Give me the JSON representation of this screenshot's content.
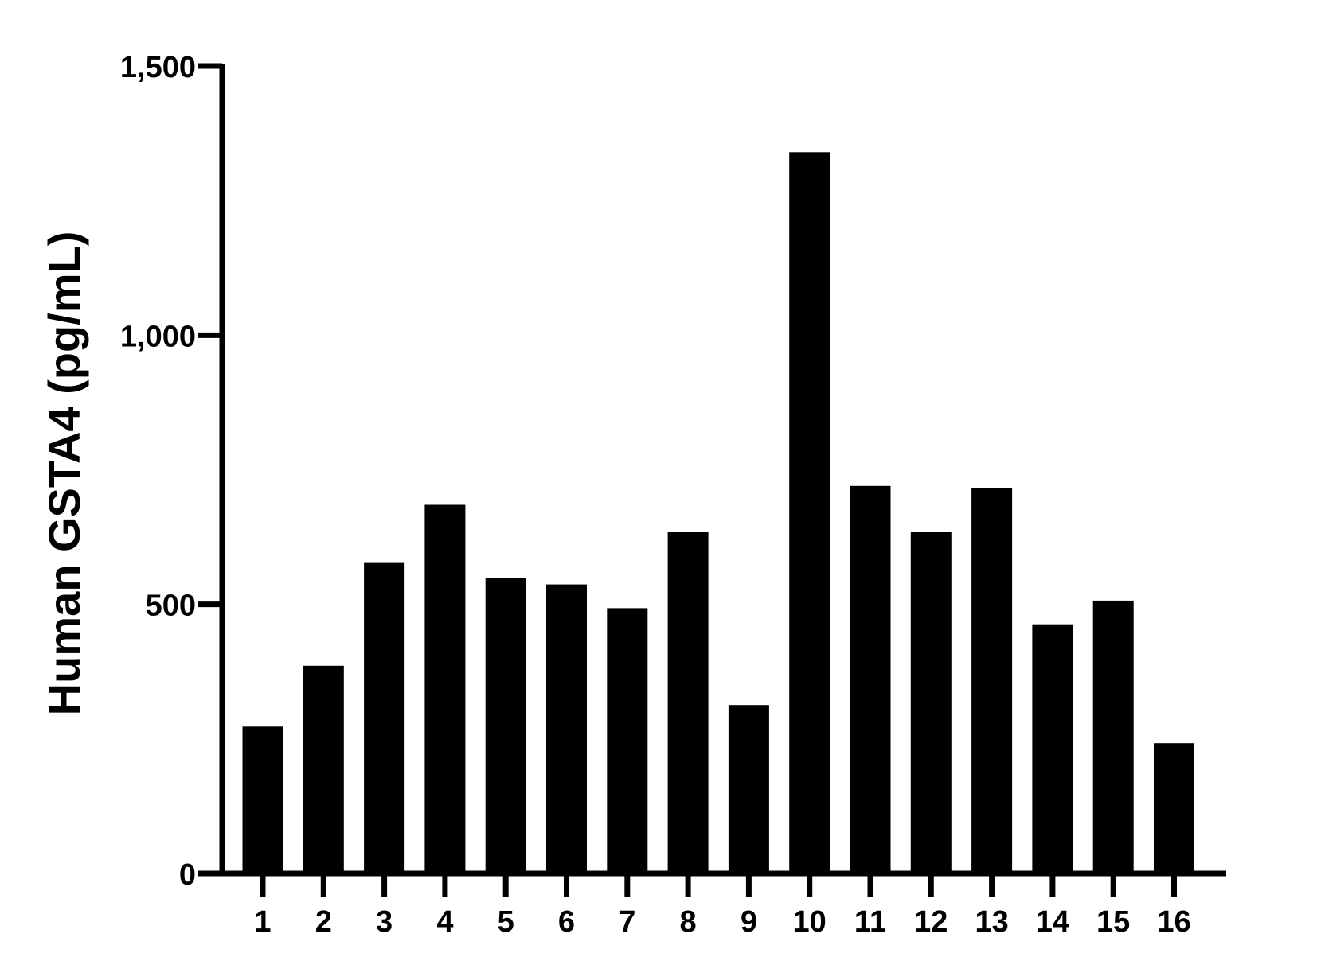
{
  "chart_data": {
    "type": "bar",
    "title": "",
    "xlabel": "",
    "ylabel": "Human GSTA4 (pg/mL)",
    "categories": [
      "1",
      "2",
      "3",
      "4",
      "5",
      "6",
      "7",
      "8",
      "9",
      "10",
      "11",
      "12",
      "13",
      "14",
      "15",
      "16"
    ],
    "values": [
      273,
      386,
      577,
      685,
      549,
      537,
      493,
      634,
      313,
      1340,
      720,
      634,
      716,
      463,
      507,
      242
    ],
    "ylim": [
      0,
      1500
    ],
    "yticks": [
      0,
      500,
      1000,
      1500
    ],
    "ytick_labels": [
      "0",
      "500",
      "1,000",
      "1,500"
    ],
    "grid": false,
    "legend": "none",
    "colors": {
      "bar": "#000000",
      "axis": "#000000",
      "background": "#ffffff"
    }
  }
}
